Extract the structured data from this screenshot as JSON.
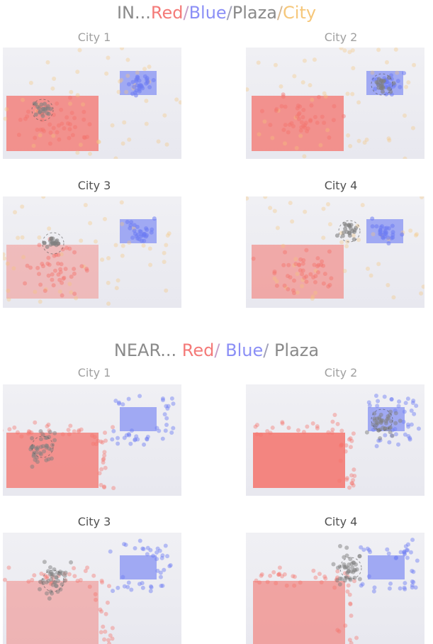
{
  "colors": {
    "red": "#f4736c",
    "blue": "#6d7cf3",
    "plaza": "#808080",
    "city": "#f6c77a",
    "panel_bg": "#eeeef3"
  },
  "sections": [
    {
      "id": "in",
      "title_parts": [
        {
          "text": "IN...",
          "color": "#8a8a8a"
        },
        {
          "text": "Red",
          "color": "#f47a78"
        },
        {
          "text": "/",
          "color": "#c7a0c8"
        },
        {
          "text": "Blue",
          "color": "#8b8ff6"
        },
        {
          "text": "/",
          "color": "#a0a0b8"
        },
        {
          "text": "Plaza",
          "color": "#8a8a8a"
        },
        {
          "text": "/",
          "color": "#d8b890"
        },
        {
          "text": "City",
          "color": "#f6c77a"
        }
      ],
      "panels": [
        {
          "title": "City 1",
          "title_color": "#a0a0a0"
        },
        {
          "title": "City 2",
          "title_color": "#a0a0a0"
        },
        {
          "title": "City 3",
          "title_color": "#505050"
        },
        {
          "title": "City 4",
          "title_color": "#505050"
        }
      ]
    },
    {
      "id": "near",
      "title_parts": [
        {
          "text": "NEAR... ",
          "color": "#8a8a8a"
        },
        {
          "text": "Red",
          "color": "#f47a78"
        },
        {
          "text": "/ ",
          "color": "#c7a0c8"
        },
        {
          "text": "Blue",
          "color": "#8b8ff6"
        },
        {
          "text": "/ ",
          "color": "#a0a0b8"
        },
        {
          "text": "Plaza",
          "color": "#8a8a8a"
        }
      ],
      "panels": [
        {
          "title": "City 1",
          "title_color": "#a0a0a0"
        },
        {
          "title": "City 2",
          "title_color": "#a0a0a0"
        },
        {
          "title": "City 3",
          "title_color": "#505050"
        },
        {
          "title": "City 4",
          "title_color": "#505050"
        }
      ]
    }
  ]
}
